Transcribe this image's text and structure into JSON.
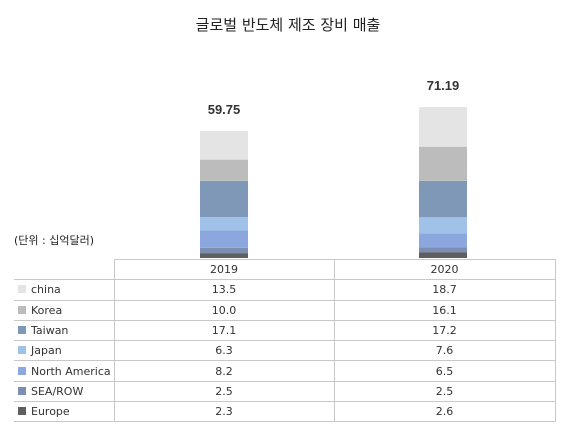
{
  "chart_data": {
    "type": "stacked_bar_with_table",
    "title": "글로벌 반도체 제조 장비 매출",
    "unit_label": "(단위 : 십억달러)",
    "categories": [
      "2019",
      "2020"
    ],
    "totals": [
      "59.75",
      "71.19"
    ],
    "series": [
      {
        "name": "china",
        "color": "#e4e4e4",
        "values": [
          13.5,
          18.7
        ]
      },
      {
        "name": "Korea",
        "color": "#bcbcbc",
        "values": [
          10.0,
          16.1
        ]
      },
      {
        "name": "Taiwan",
        "color": "#7f98b8",
        "values": [
          17.1,
          17.2
        ]
      },
      {
        "name": "Japan",
        "color": "#a0c2e8",
        "values": [
          6.3,
          7.6
        ]
      },
      {
        "name": "North America",
        "color": "#8ca6de",
        "values": [
          8.2,
          6.5
        ]
      },
      {
        "name": "SEA/ROW",
        "color": "#7d8fb0",
        "values": [
          2.5,
          2.5
        ]
      },
      {
        "name": "Europe",
        "color": "#5f5f5f",
        "values": [
          2.3,
          2.6
        ]
      }
    ],
    "table_values": [
      [
        "13.5",
        "18.7"
      ],
      [
        "10.0",
        "16.1"
      ],
      [
        "17.1",
        "17.2"
      ],
      [
        "6.3",
        "7.6"
      ],
      [
        "8.2",
        "6.5"
      ],
      [
        "2.5",
        "2.5"
      ],
      [
        "2.3",
        "2.6"
      ]
    ]
  }
}
